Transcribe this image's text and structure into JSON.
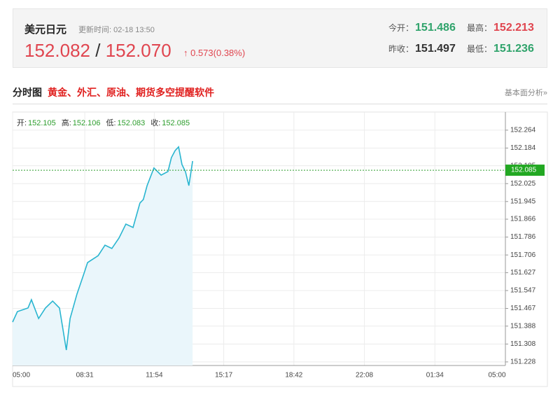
{
  "header": {
    "name": "美元日元",
    "update_time": "更新时间: 02-18 13:50",
    "bid": "152.082",
    "separator": "/",
    "ask": "152.070",
    "change": "↑ 0.573(0.38%)",
    "stats": [
      {
        "label": "今开：",
        "value": "151.486",
        "color": "#2fa36b"
      },
      {
        "label": "最高：",
        "value": "152.213",
        "color": "#e0454f"
      },
      {
        "label": "昨收：",
        "value": "151.497",
        "color": "#333333"
      },
      {
        "label": "最低：",
        "value": "151.236",
        "color": "#2fa36b"
      }
    ]
  },
  "section": {
    "title": "分时图",
    "promo": "黄金、外汇、原油、期货多空提醒软件",
    "link": "基本面分析»"
  },
  "chart_data": {
    "type": "line",
    "color": "#29b5d0",
    "area_color": "#eaf6fb",
    "ohlc": [
      {
        "label": "开:",
        "value": 152.105
      },
      {
        "label": "高:",
        "value": 152.106
      },
      {
        "label": "低:",
        "value": 152.083
      },
      {
        "label": "收:",
        "value": 152.085
      }
    ],
    "x": [
      0,
      14,
      45,
      55,
      76,
      96,
      117,
      137,
      147,
      157,
      168,
      188,
      209,
      219,
      250,
      270,
      290,
      311,
      331,
      352,
      372,
      382,
      393,
      413,
      434,
      454,
      464,
      475,
      485,
      495,
      505,
      515,
      526
    ],
    "values": [
      151.406,
      151.453,
      151.469,
      151.506,
      151.422,
      151.469,
      151.5,
      151.469,
      151.375,
      151.281,
      151.422,
      151.531,
      151.625,
      151.672,
      151.703,
      151.75,
      151.735,
      151.782,
      151.844,
      151.829,
      151.938,
      151.954,
      152.016,
      152.095,
      152.063,
      152.079,
      152.141,
      152.173,
      152.189,
      152.11,
      152.079,
      152.016,
      152.126
    ],
    "xlim": [
      0,
      1440
    ],
    "xticks": [
      {
        "value": 0,
        "label": "05:00"
      },
      {
        "value": 211,
        "label": "08:31"
      },
      {
        "value": 414,
        "label": "11:54"
      },
      {
        "value": 617,
        "label": "15:17"
      },
      {
        "value": 822,
        "label": "18:42"
      },
      {
        "value": 1028,
        "label": "22:08"
      },
      {
        "value": 1234,
        "label": "01:34"
      },
      {
        "value": 1440,
        "label": "05:00"
      }
    ],
    "ylim": [
      151.212,
      152.345
    ],
    "yticks": [
      151.228,
      151.308,
      151.388,
      151.467,
      151.547,
      151.627,
      151.706,
      151.786,
      151.866,
      151.945,
      152.025,
      152.105,
      152.184,
      152.264
    ],
    "grid": true
  }
}
